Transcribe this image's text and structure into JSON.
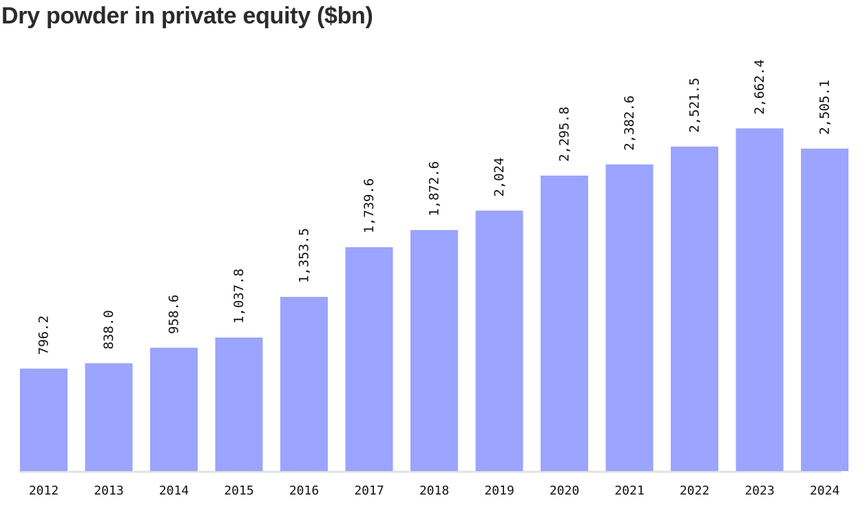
{
  "chart_data": {
    "type": "bar",
    "title": "Dry powder in private equity ($bn)",
    "xlabel": "",
    "ylabel": "",
    "categories": [
      "2012",
      "2013",
      "2014",
      "2015",
      "2016",
      "2017",
      "2018",
      "2019",
      "2020",
      "2021",
      "2022",
      "2023",
      "2024"
    ],
    "values": [
      796.2,
      838.0,
      958.6,
      1037.8,
      1353.5,
      1739.6,
      1872.6,
      2024,
      2295.8,
      2382.6,
      2521.5,
      2662.4,
      2505.1
    ],
    "value_labels": [
      "796.2",
      "838.0",
      "958.6",
      "1,037.8",
      "1,353.5",
      "1,739.6",
      "1,872.6",
      "2,024",
      "2,295.8",
      "2,382.6",
      "2,521.5",
      "2,662.4",
      "2,505.1"
    ],
    "ylim": [
      0,
      3200
    ],
    "grid": false,
    "legend": "none",
    "bar_color": "#9ba4ff",
    "baseline_color": "#e2e2e2"
  }
}
